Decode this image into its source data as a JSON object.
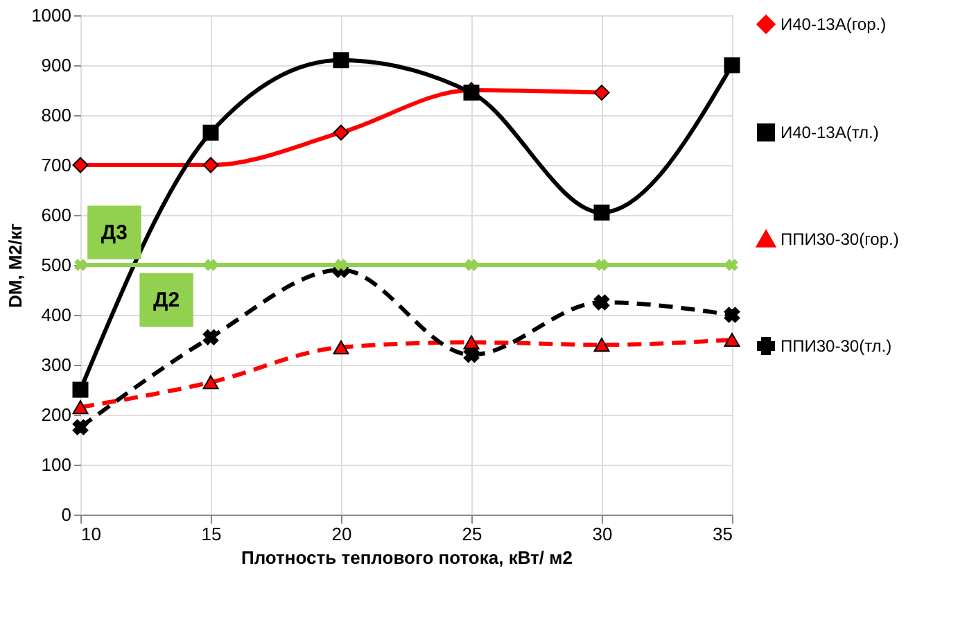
{
  "chart_data": {
    "type": "line",
    "xlabel": "Плотность теплового потока, кВт/ м2",
    "ylabel": "DM, М2/кг",
    "x": [
      10,
      15,
      20,
      25,
      30,
      35
    ],
    "series": [
      {
        "name": "И40-13А(гор.)",
        "color": "#ff0000",
        "marker": "diamond",
        "line_style": "solid",
        "values": [
          700,
          700,
          765,
          850,
          845,
          null
        ]
      },
      {
        "name": "И40-13А(тл.)",
        "color": "#000000",
        "marker": "square",
        "line_style": "solid",
        "values": [
          250,
          765,
          910,
          845,
          605,
          900
        ]
      },
      {
        "name": "ППИ30-30(гор.)",
        "color": "#ff0000",
        "marker": "triangle",
        "line_style": "dashed",
        "values": [
          215,
          265,
          335,
          345,
          340,
          350
        ]
      },
      {
        "name": "ППИ30-30(тл.)",
        "color": "#000000",
        "marker": "cross",
        "line_style": "dashed",
        "values": [
          175,
          355,
          490,
          320,
          425,
          400
        ]
      },
      {
        "color": "#92d050",
        "marker": "cross",
        "line_style": "solid",
        "values": [
          500,
          500,
          500,
          500,
          500,
          500
        ]
      }
    ],
    "annotations": [
      {
        "text": "Д3",
        "x": 11.3,
        "y": 565
      },
      {
        "text": "Д2",
        "x": 13.3,
        "y": 430
      }
    ],
    "xlim": [
      10,
      35
    ],
    "xticks": [
      10,
      15,
      20,
      25,
      30,
      35
    ],
    "ylim": [
      0,
      1000
    ],
    "yticks": [
      0,
      100,
      200,
      300,
      400,
      500,
      600,
      700,
      800,
      900,
      1000
    ],
    "grid": true,
    "legend": "right"
  }
}
